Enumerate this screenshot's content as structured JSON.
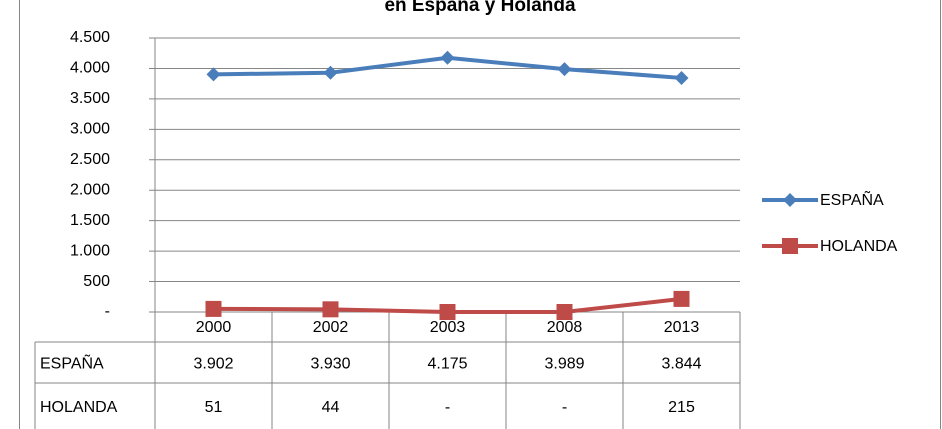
{
  "chart_data": {
    "type": "line",
    "title": "en España y Holanda",
    "categories": [
      "2000",
      "2002",
      "2003",
      "2008",
      "2013"
    ],
    "series": [
      {
        "name": "ESPAÑA",
        "color": "#4a7ebb",
        "values": [
          3902,
          3930,
          4175,
          3989,
          3844
        ],
        "value_labels": [
          "3.902",
          "3.930",
          "4.175",
          "3.989",
          "3.844"
        ]
      },
      {
        "name": "HOLANDA",
        "color": "#be4b48",
        "values": [
          51,
          44,
          0,
          0,
          215
        ],
        "value_labels": [
          "51",
          "44",
          "-",
          "-",
          "215"
        ]
      }
    ],
    "ylim": [
      0,
      4500
    ],
    "yticks": [
      {
        "value": 0,
        "label": "-"
      },
      500,
      {
        "value": 1000,
        "label": "1.000"
      },
      {
        "value": 1500,
        "label": "1.500"
      },
      {
        "value": 2000,
        "label": "2.000"
      },
      {
        "value": 2500,
        "label": "2.500"
      },
      {
        "value": 3000,
        "label": "3.000"
      },
      {
        "value": 3500,
        "label": "3.500"
      },
      {
        "value": 4000,
        "label": "4.000"
      },
      {
        "value": 4500,
        "label": "4.500"
      }
    ],
    "grid": true,
    "legend": "right"
  }
}
